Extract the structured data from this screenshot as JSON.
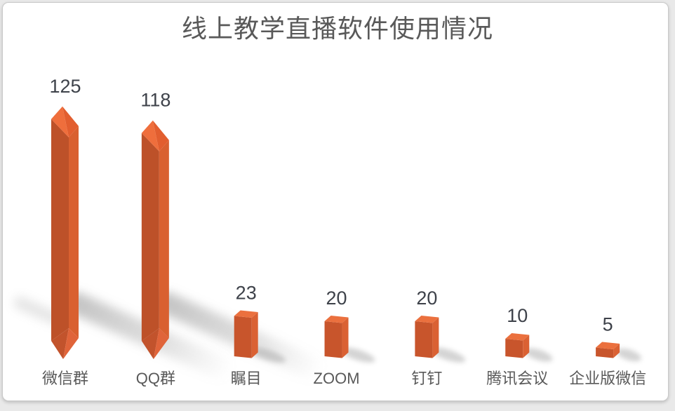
{
  "title": "线上教学直播软件使用情况",
  "frame": {
    "background": "#ffffff",
    "border_color": "#c9c9c9",
    "page_background": "#e9e9e9"
  },
  "chart_data": {
    "type": "bar",
    "style": "3d-column",
    "title": "线上教学直播软件使用情况",
    "categories": [
      "微信群",
      "QQ群",
      "瞩目",
      "ZOOM",
      "钉钉",
      "腾讯会议",
      "企业版微信"
    ],
    "values": [
      125,
      118,
      23,
      20,
      20,
      10,
      5
    ],
    "data_labels": [
      "125",
      "118",
      "23",
      "20",
      "20",
      "10",
      "5"
    ],
    "xlabel": "",
    "ylabel": "",
    "axes_visible": false,
    "gridlines": false,
    "legend": "none",
    "title_color": "#595959",
    "value_label_color": "#3e424a",
    "category_label_color": "#595959",
    "shadow_color": "#999999",
    "colors": {
      "cap_left": "#ef6e3c",
      "cap_right": "#e25e2f",
      "body_left": "#bd5129",
      "body_right": "#d96030",
      "bottom_left": "#c2532c",
      "bottom_right": "#e0643a",
      "box_front": "#c8552c",
      "box_side": "#da6133",
      "box_top": "#eb703e"
    }
  }
}
